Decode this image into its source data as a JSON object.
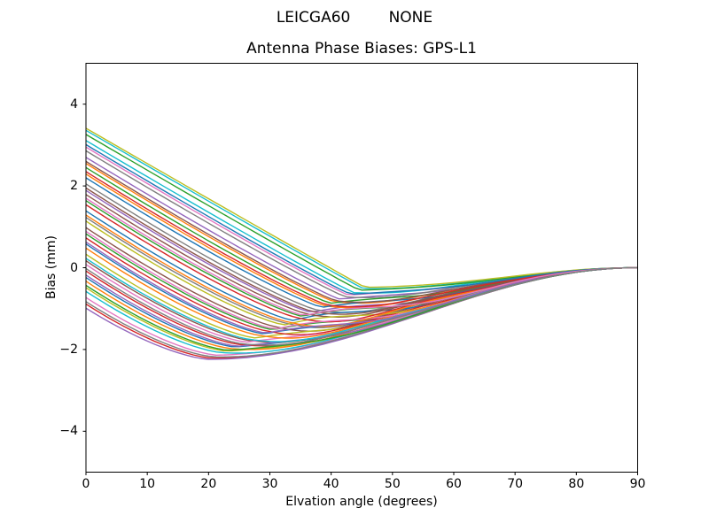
{
  "figure": {
    "suptitle": "LEICGA60        NONE",
    "background": "#ffffff",
    "text_color": "#000000"
  },
  "chart_data": {
    "type": "line",
    "title": "Antenna Phase Biases: GPS-L1",
    "xlabel": "Elvation angle (degrees)",
    "ylabel": "Bias (mm)",
    "xlim": [
      0,
      90
    ],
    "ylim": [
      -5,
      5
    ],
    "xticks": [
      0,
      10,
      20,
      30,
      40,
      50,
      60,
      70,
      80,
      90
    ],
    "yticks": [
      -4,
      -2,
      0,
      2,
      4
    ],
    "grid": false,
    "legend": false,
    "end_value": 0,
    "series_model": "each curve starts at 'start' mm at 0 deg elevation, descends to 'min' mm at 'min_at' deg, then rises smoothly and converges to 0 mm at 90 deg",
    "envelope": {
      "x": [
        0,
        10,
        20,
        30,
        40,
        50,
        60,
        70,
        80,
        90
      ],
      "top": [
        3.5,
        2.65,
        1.75,
        0.8,
        0.05,
        -0.35,
        -0.42,
        -0.22,
        -0.05,
        0
      ],
      "bottom": [
        -1.0,
        -1.75,
        -2.25,
        -2.1,
        -1.85,
        -1.55,
        -1.25,
        -0.55,
        -0.15,
        0
      ]
    },
    "palette": [
      "#1f77b4",
      "#ff7f0e",
      "#2ca02c",
      "#d62728",
      "#9467bd",
      "#8c564b",
      "#e377c2",
      "#7f7f7f",
      "#bcbd22",
      "#17becf"
    ],
    "series": [
      {
        "color": 0,
        "start": -0.24,
        "min": -1.94,
        "min_at": 24.4
      },
      {
        "color": 1,
        "start": 2.55,
        "min": -0.83,
        "min_at": 40.5
      },
      {
        "color": 2,
        "start": 0.83,
        "min": -1.52,
        "min_at": 30.6
      },
      {
        "color": 3,
        "start": -0.89,
        "min": -2.21,
        "min_at": 20.6
      },
      {
        "color": 4,
        "start": 1.89,
        "min": -1.09,
        "min_at": 36.7
      },
      {
        "color": 5,
        "start": 0.17,
        "min": -1.78,
        "min_at": 26.8
      },
      {
        "color": 6,
        "start": 2.95,
        "min": -0.67,
        "min_at": 42.8
      },
      {
        "color": 7,
        "start": 1.23,
        "min": -1.36,
        "min_at": 32.9
      },
      {
        "color": 8,
        "start": -0.49,
        "min": -2.04,
        "min_at": 23.0
      },
      {
        "color": 9,
        "start": 3.36,
        "min": -0.51,
        "min_at": 45.2
      },
      {
        "color": 0,
        "start": 0.58,
        "min": -1.62,
        "min_at": 29.1
      },
      {
        "color": 1,
        "start": 2.29,
        "min": -0.93,
        "min_at": 39.0
      },
      {
        "color": 2,
        "start": 1.64,
        "min": -1.19,
        "min_at": 35.3
      },
      {
        "color": 3,
        "start": -0.08,
        "min": -1.88,
        "min_at": 25.3
      },
      {
        "color": 4,
        "start": 2.7,
        "min": -0.77,
        "min_at": 41.4
      },
      {
        "color": 5,
        "start": 0.98,
        "min": -1.46,
        "min_at": 31.5
      },
      {
        "color": 6,
        "start": -0.73,
        "min": -2.14,
        "min_at": 21.5
      },
      {
        "color": 7,
        "start": 2.05,
        "min": -1.03,
        "min_at": 37.6
      },
      {
        "color": 8,
        "start": 0.33,
        "min": -1.72,
        "min_at": 27.7
      },
      {
        "color": 9,
        "start": 3.11,
        "min": -0.61,
        "min_at": 43.7
      },
      {
        "color": 0,
        "start": 1.39,
        "min": -1.29,
        "min_at": 33.8
      },
      {
        "color": 1,
        "start": -0.33,
        "min": -1.98,
        "min_at": 23.9
      },
      {
        "color": 2,
        "start": 2.45,
        "min": -0.87,
        "min_at": 39.9
      },
      {
        "color": 3,
        "start": 0.73,
        "min": -1.56,
        "min_at": 30.0
      },
      {
        "color": 4,
        "start": -0.99,
        "min": -2.24,
        "min_at": 20.1
      },
      {
        "color": 5,
        "start": 1.79,
        "min": -1.13,
        "min_at": 36.1
      },
      {
        "color": 6,
        "start": 0.08,
        "min": -1.82,
        "min_at": 26.2
      },
      {
        "color": 7,
        "start": 2.86,
        "min": -0.71,
        "min_at": 42.3
      },
      {
        "color": 8,
        "start": 1.14,
        "min": -1.4,
        "min_at": 32.4
      },
      {
        "color": 9,
        "start": -0.58,
        "min": -2.08,
        "min_at": 22.4
      },
      {
        "color": 0,
        "start": 2.2,
        "min": -0.97,
        "min_at": 38.5
      },
      {
        "color": 1,
        "start": 0.48,
        "min": -1.66,
        "min_at": 28.6
      },
      {
        "color": 2,
        "start": 3.26,
        "min": -0.55,
        "min_at": 44.6
      },
      {
        "color": 3,
        "start": 1.54,
        "min": -1.23,
        "min_at": 34.7
      },
      {
        "color": 4,
        "start": -0.18,
        "min": -1.92,
        "min_at": 24.8
      },
      {
        "color": 5,
        "start": 2.6,
        "min": -0.81,
        "min_at": 40.8
      },
      {
        "color": 6,
        "start": 0.89,
        "min": -1.5,
        "min_at": 30.9
      },
      {
        "color": 7,
        "start": -0.83,
        "min": -2.18,
        "min_at": 21.0
      },
      {
        "color": 8,
        "start": 3.41,
        "min": -0.48,
        "min_at": 45.5
      },
      {
        "color": 9,
        "start": 0.23,
        "min": -1.76,
        "min_at": 27.1
      },
      {
        "color": 0,
        "start": 3.01,
        "min": -0.65,
        "min_at": 43.2
      },
      {
        "color": 1,
        "start": 1.29,
        "min": -1.33,
        "min_at": 33.2
      },
      {
        "color": 2,
        "start": -0.43,
        "min": -2.02,
        "min_at": 23.3
      },
      {
        "color": 3,
        "start": 2.35,
        "min": -0.91,
        "min_at": 39.4
      },
      {
        "color": 4,
        "start": 0.63,
        "min": -1.6,
        "min_at": 29.4
      },
      {
        "color": 5,
        "start": 1.95,
        "min": -1.07,
        "min_at": 37.0
      },
      {
        "color": 6,
        "start": 1.7,
        "min": -1.17,
        "min_at": 35.6
      },
      {
        "color": 7,
        "start": -0.02,
        "min": -1.86,
        "min_at": 25.7
      }
    ]
  }
}
